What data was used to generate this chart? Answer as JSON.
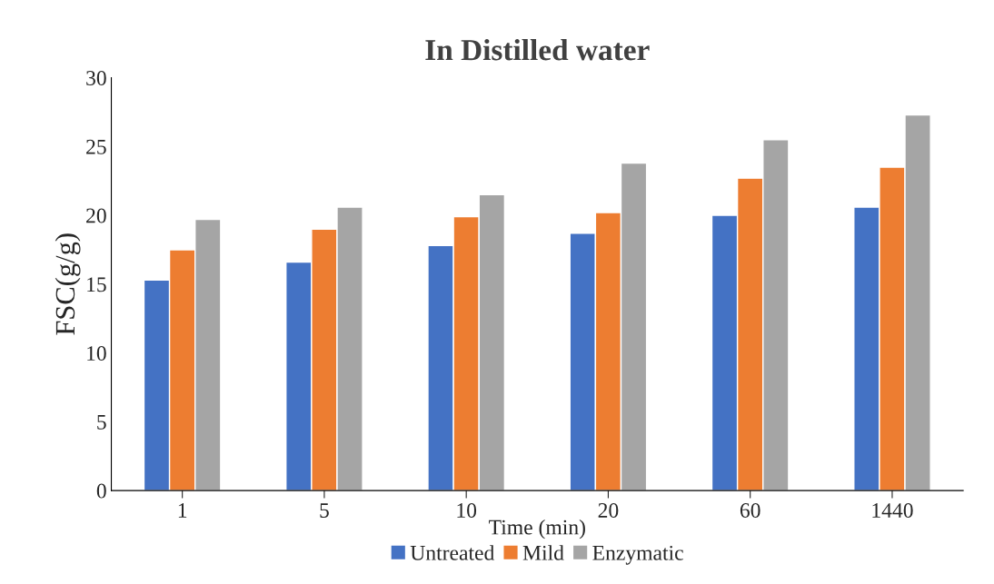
{
  "chart_data": {
    "type": "bar",
    "title": "In Distilled water",
    "xlabel": "Time (min)",
    "ylabel": "FSC(g/g)",
    "categories": [
      "1",
      "5",
      "10",
      "20",
      "60",
      "1440"
    ],
    "series": [
      {
        "name": "Untreated",
        "color": "#4472c4",
        "values": [
          15.3,
          16.6,
          17.8,
          18.7,
          20.0,
          20.6
        ]
      },
      {
        "name": "Mild",
        "color": "#ed7d31",
        "values": [
          17.5,
          19.0,
          19.9,
          20.2,
          22.7,
          23.5
        ]
      },
      {
        "name": "Enzymatic",
        "color": "#a5a5a5",
        "values": [
          19.7,
          20.6,
          21.5,
          23.8,
          25.5,
          27.3
        ]
      }
    ],
    "ylim": [
      0,
      30
    ],
    "yticks": [
      0,
      5,
      10,
      15,
      20,
      25,
      30
    ],
    "grid": false,
    "legend": "bottom"
  }
}
